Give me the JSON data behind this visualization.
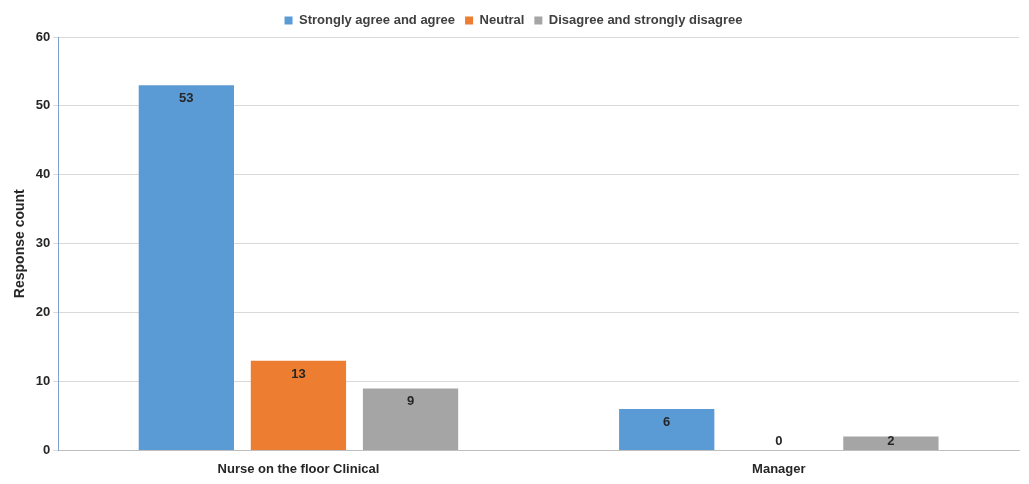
{
  "chart_data": {
    "type": "bar",
    "categories": [
      "Nurse on the floor Clinical",
      "Manager"
    ],
    "series": [
      {
        "name": "Strongly agree and agree",
        "color": "#5b9bd5",
        "values": [
          53,
          6
        ]
      },
      {
        "name": "Neutral",
        "color": "#ed7d31",
        "values": [
          13,
          0
        ]
      },
      {
        "name": "Disagree and strongly disagree",
        "color": "#a5a5a5",
        "values": [
          9,
          2
        ]
      }
    ],
    "ylabel": "Response count",
    "ylim": [
      0,
      60
    ],
    "yticks": [
      0,
      10,
      20,
      30,
      40,
      50,
      60
    ],
    "grid": "y",
    "legend": "top",
    "data_labels": true
  }
}
